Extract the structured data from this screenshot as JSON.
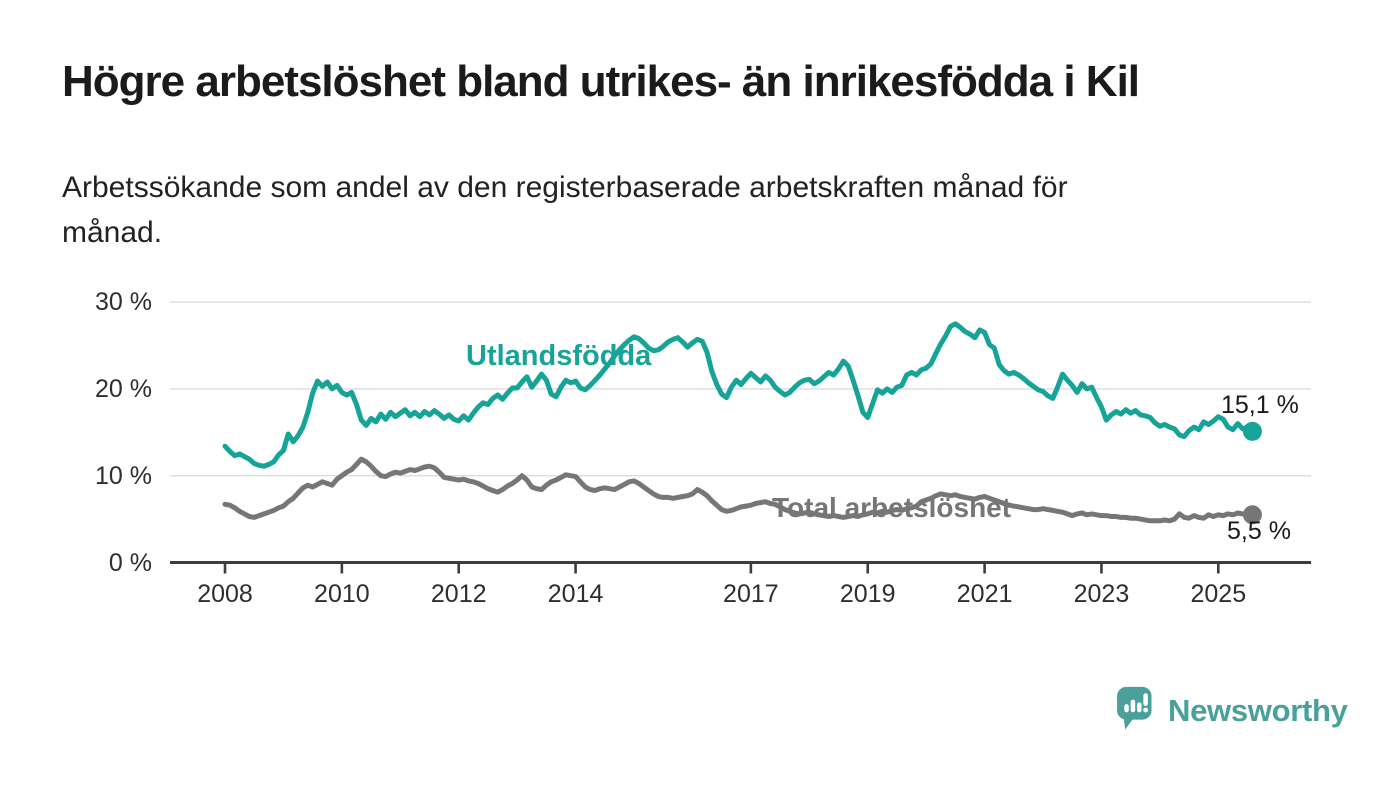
{
  "header": {
    "title": "Högre arbetslöshet bland utrikes- än inrikesfödda i Kil",
    "subtitle": "Arbetssökande som andel av den registerbaserade arbetskraften månad för månad.",
    "subtitle_lines": [
      "Arbetssökande som andel av den registerbaserade arbetskraften månad för",
      "månad."
    ]
  },
  "chart_data": {
    "type": "line",
    "unit": "%",
    "grid": true,
    "legend": "inline-labels",
    "x_axis": {
      "start_year": 2008,
      "months_per_point": 1,
      "end_point": "2025-08",
      "tick_years": [
        2008,
        2010,
        2012,
        2014,
        2017,
        2019,
        2021,
        2023,
        2025
      ],
      "tick_labels": [
        "2008",
        "2010",
        "2012",
        "2014",
        "2017",
        "2019",
        "2021",
        "2023",
        "2025"
      ]
    },
    "y_axis": {
      "tick_values": [
        30,
        20,
        10,
        0
      ],
      "tick_labels": [
        "30 %",
        "20 %",
        "10 %",
        "0 %"
      ],
      "range": [
        0,
        31
      ]
    },
    "series": [
      {
        "name": "Utlandsfödda",
        "color": "#16A398",
        "end_label": "15,1 %",
        "end_value": 15.1,
        "values": [
          13.4,
          12.8,
          12.3,
          12.5,
          12.2,
          11.9,
          11.4,
          11.2,
          11.1,
          11.3,
          11.6,
          12.4,
          12.9,
          14.8,
          13.9,
          14.6,
          15.6,
          17.3,
          19.5,
          20.9,
          20.3,
          20.8,
          20.0,
          20.4,
          19.6,
          19.3,
          19.6,
          18.2,
          16.4,
          15.8,
          16.6,
          16.2,
          17.1,
          16.5,
          17.3,
          16.8,
          17.2,
          17.6,
          16.9,
          17.3,
          16.8,
          17.4,
          17.0,
          17.5,
          17.1,
          16.6,
          17.0,
          16.5,
          16.3,
          16.9,
          16.4,
          17.2,
          17.9,
          18.4,
          18.2,
          18.9,
          19.3,
          18.8,
          19.5,
          20.1,
          20.1,
          20.8,
          21.4,
          20.2,
          20.9,
          21.7,
          21.0,
          19.4,
          19.1,
          20.2,
          21.0,
          20.7,
          20.9,
          20.1,
          19.9,
          20.4,
          21.0,
          21.6,
          22.3,
          23.0,
          23.8,
          24.5,
          25.1,
          25.6,
          26.0,
          25.8,
          25.3,
          24.7,
          24.4,
          24.5,
          24.9,
          25.4,
          25.7,
          25.9,
          25.4,
          24.8,
          25.3,
          25.7,
          25.5,
          24.2,
          22.0,
          20.5,
          19.4,
          19.0,
          20.2,
          21.0,
          20.5,
          21.2,
          21.8,
          21.3,
          20.8,
          21.5,
          21.0,
          20.2,
          19.7,
          19.3,
          19.6,
          20.2,
          20.7,
          21.0,
          21.1,
          20.6,
          20.9,
          21.4,
          21.9,
          21.6,
          22.3,
          23.2,
          22.6,
          21.0,
          19.2,
          17.3,
          16.7,
          18.3,
          19.9,
          19.5,
          20.0,
          19.6,
          20.2,
          20.4,
          21.6,
          21.9,
          21.6,
          22.2,
          22.4,
          22.9,
          24.1,
          25.2,
          26.1,
          27.2,
          27.5,
          27.1,
          26.6,
          26.3,
          25.9,
          26.8,
          26.5,
          25.1,
          24.7,
          22.8,
          22.1,
          21.7,
          21.9,
          21.6,
          21.2,
          20.7,
          20.3,
          19.9,
          19.7,
          19.2,
          18.9,
          20.2,
          21.7,
          21.0,
          20.4,
          19.6,
          20.6,
          20.0,
          20.2,
          19.0,
          17.9,
          16.4,
          17.0,
          17.4,
          17.1,
          17.6,
          17.2,
          17.5,
          17.0,
          16.9,
          16.7,
          16.1,
          15.7,
          15.9,
          15.6,
          15.4,
          14.7,
          14.5,
          15.2,
          15.6,
          15.3,
          16.2,
          15.9,
          16.3,
          16.8,
          16.5,
          15.6,
          15.3,
          16.0,
          15.4,
          15.6,
          15.1
        ]
      },
      {
        "name": "Total arbetslöshet",
        "color": "#767676",
        "end_label": "5,5 %",
        "end_value": 5.5,
        "values": [
          6.7,
          6.6,
          6.3,
          5.9,
          5.6,
          5.3,
          5.2,
          5.4,
          5.6,
          5.8,
          6.0,
          6.3,
          6.5,
          7.0,
          7.4,
          8.0,
          8.6,
          8.9,
          8.7,
          9.0,
          9.3,
          9.1,
          8.9,
          9.6,
          10.0,
          10.4,
          10.7,
          11.3,
          11.9,
          11.6,
          11.1,
          10.5,
          10.0,
          9.9,
          10.2,
          10.4,
          10.3,
          10.5,
          10.7,
          10.6,
          10.8,
          11.0,
          11.1,
          10.9,
          10.4,
          9.8,
          9.7,
          9.6,
          9.5,
          9.6,
          9.4,
          9.3,
          9.1,
          8.8,
          8.5,
          8.3,
          8.1,
          8.4,
          8.8,
          9.1,
          9.5,
          10.0,
          9.5,
          8.7,
          8.5,
          8.4,
          8.9,
          9.3,
          9.5,
          9.8,
          10.1,
          10.0,
          9.9,
          9.3,
          8.7,
          8.4,
          8.3,
          8.5,
          8.6,
          8.5,
          8.4,
          8.7,
          9.0,
          9.3,
          9.4,
          9.1,
          8.7,
          8.3,
          7.9,
          7.6,
          7.5,
          7.5,
          7.4,
          7.5,
          7.6,
          7.7,
          7.9,
          8.4,
          8.1,
          7.7,
          7.1,
          6.6,
          6.1,
          5.9,
          6.0,
          6.2,
          6.4,
          6.5,
          6.6,
          6.8,
          6.9,
          7.0,
          6.8,
          6.7,
          6.4,
          6.1,
          5.9,
          5.7,
          5.6,
          5.7,
          5.8,
          5.6,
          5.5,
          5.4,
          5.3,
          5.4,
          5.3,
          5.2,
          5.3,
          5.4,
          5.3,
          5.5,
          5.6,
          5.8,
          5.7,
          5.9,
          5.8,
          6.0,
          6.1,
          6.0,
          6.2,
          6.3,
          6.5,
          7.0,
          7.2,
          7.4,
          7.7,
          7.9,
          7.8,
          7.7,
          7.8,
          7.6,
          7.5,
          7.4,
          7.3,
          7.5,
          7.6,
          7.4,
          7.2,
          7.0,
          6.8,
          6.6,
          6.5,
          6.4,
          6.3,
          6.2,
          6.1,
          6.1,
          6.2,
          6.1,
          6.0,
          5.9,
          5.8,
          5.6,
          5.4,
          5.6,
          5.7,
          5.5,
          5.6,
          5.5,
          5.4,
          5.4,
          5.3,
          5.3,
          5.2,
          5.2,
          5.1,
          5.1,
          5.0,
          4.9,
          4.8,
          4.8,
          4.8,
          4.9,
          4.8,
          5.0,
          5.6,
          5.2,
          5.1,
          5.4,
          5.2,
          5.1,
          5.5,
          5.3,
          5.5,
          5.4,
          5.6,
          5.5,
          5.7,
          5.6,
          5.5,
          5.5
        ]
      }
    ]
  },
  "branding": {
    "name": "Newsworthy"
  },
  "colors": {
    "accent_teal": "#16A398",
    "series_gray": "#767676",
    "logo_teal": "#4AA09B",
    "text_dark": "#1b1b1b",
    "grid": "#DCDCDC",
    "axis": "#3D3D3D"
  }
}
